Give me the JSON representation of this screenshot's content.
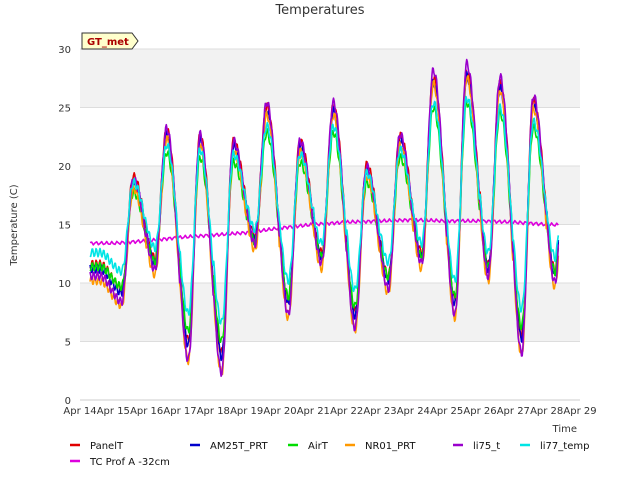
{
  "chart_data": {
    "type": "line",
    "title": "Temperatures",
    "xlabel": "Time",
    "ylabel": "Temperature (C)",
    "ylim": [
      0,
      30
    ],
    "xlim": [
      "2024-04-14",
      "2024-04-29"
    ],
    "y_ticks": [
      "0",
      "5",
      "10",
      "15",
      "20",
      "25",
      "30"
    ],
    "x_ticks": [
      "Apr 14",
      "Apr 15",
      "Apr 16",
      "Apr 17",
      "Apr 18",
      "Apr 19",
      "Apr 20",
      "Apr 21",
      "Apr 22",
      "Apr 23",
      "Apr 24",
      "Apr 25",
      "Apr 26",
      "Apr 27",
      "Apr 28",
      "Apr 29"
    ],
    "badge": "GT_met",
    "grid": "horizontal bands",
    "legend_position": "bottom",
    "daily": {
      "dates": [
        "2024-04-14",
        "2024-04-15",
        "2024-04-16",
        "2024-04-17",
        "2024-04-18",
        "2024-04-19",
        "2024-04-20",
        "2024-04-21",
        "2024-04-22",
        "2024-04-23",
        "2024-04-24",
        "2024-04-25",
        "2024-04-26",
        "2024-04-27",
        "2024-04-28"
      ],
      "min": [
        11.0,
        9.0,
        11.5,
        4.5,
        3.5,
        13.5,
        8.0,
        12.0,
        7.0,
        10.0,
        12.0,
        8.0,
        11.0,
        5.0,
        10.5
      ],
      "max": [
        11.0,
        18.5,
        22.5,
        22.0,
        21.5,
        24.5,
        21.5,
        24.5,
        19.5,
        22.0,
        27.0,
        27.5,
        26.5,
        25.0,
        24.5
      ]
    },
    "series": [
      {
        "name": "PanelT",
        "color": "#e00000",
        "offset": 0.6,
        "scale": 1.0
      },
      {
        "name": "TC Prof A -32cm",
        "color": "#dd00dd",
        "values": [
          13.4,
          13.4,
          13.6,
          13.9,
          14.1,
          14.3,
          14.7,
          15.0,
          15.2,
          15.3,
          15.4,
          15.3,
          15.3,
          15.2,
          15.0,
          14.9
        ]
      },
      {
        "name": "AM25T_PRT",
        "color": "#0000cc",
        "offset": 0.2,
        "scale": 1.0
      },
      {
        "name": "AirT",
        "color": "#00dd00",
        "offset": -0.2,
        "scale": 0.85
      },
      {
        "name": "NR01_PRT",
        "color": "#ff9900",
        "offset": -0.6,
        "scale": 1.05
      },
      {
        "name": "li75_t",
        "color": "#9900cc",
        "offset": 0.0,
        "scale": 1.1
      },
      {
        "name": "li77_temp",
        "color": "#00e5e5",
        "offset": 0.8,
        "scale": 0.8
      }
    ]
  }
}
